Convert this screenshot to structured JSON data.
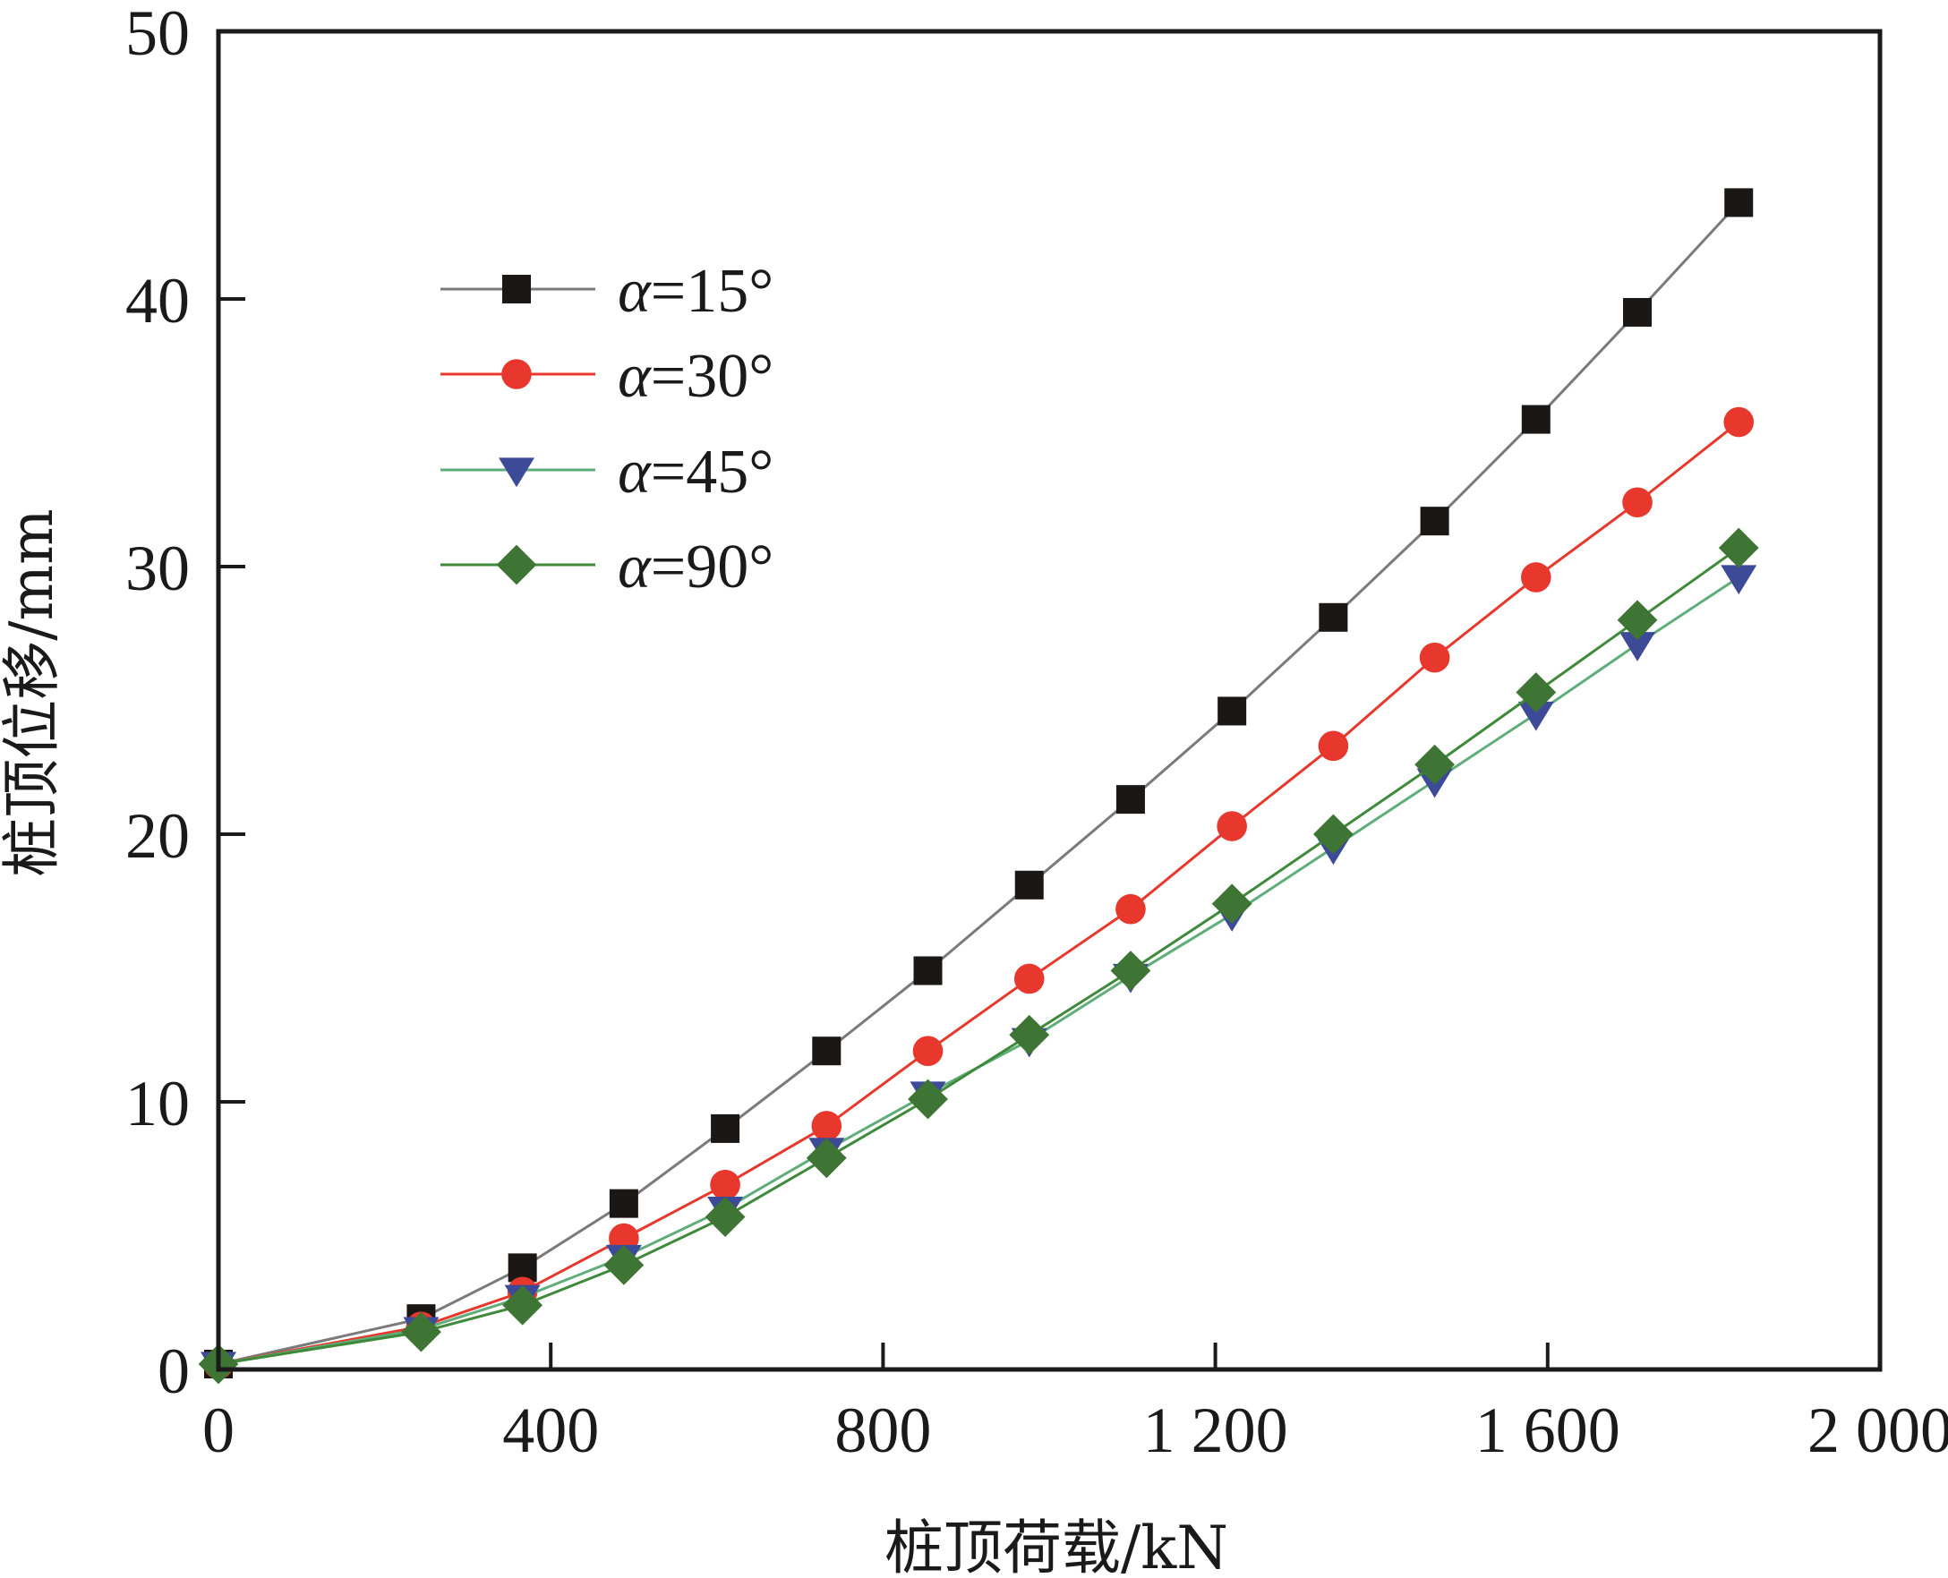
{
  "chart_data": {
    "type": "line",
    "title": "",
    "xlabel": "桩顶荷载/kN",
    "ylabel": "桩顶位移/mm",
    "xlim": [
      0,
      2000
    ],
    "ylim": [
      0,
      50
    ],
    "xticks": [
      0,
      400,
      800,
      1200,
      1600,
      2000
    ],
    "xtick_labels": [
      "0",
      "400",
      "800",
      "1 200",
      "1 600",
      "2 000"
    ],
    "yticks": [
      0,
      10,
      20,
      30,
      40,
      50
    ],
    "ytick_labels": [
      "0",
      "10",
      "20",
      "30",
      "40",
      "50"
    ],
    "grid": false,
    "legend_position": "upper-left (inside)",
    "x": [
      0,
      244,
      366,
      488,
      610,
      732,
      854,
      976,
      1098,
      1220,
      1342,
      1464,
      1586,
      1708,
      1830
    ],
    "series": [
      {
        "name": "α=15°",
        "label_symbol": "α",
        "label_rest": "=15°",
        "marker": "square",
        "marker_color": "#1a1714",
        "line_color": "#7a7a7a",
        "values": [
          0.2,
          1.9,
          3.8,
          6.2,
          9.0,
          11.9,
          14.9,
          18.1,
          21.3,
          24.6,
          28.1,
          31.7,
          35.5,
          39.5,
          43.6
        ]
      },
      {
        "name": "α=30°",
        "label_symbol": "α",
        "label_rest": "=30°",
        "marker": "circle",
        "marker_color": "#e8372c",
        "line_color": "#e8372c",
        "values": [
          0.2,
          1.6,
          2.9,
          4.9,
          6.9,
          9.1,
          11.9,
          14.6,
          17.2,
          20.3,
          23.3,
          26.6,
          29.6,
          32.4,
          35.4
        ]
      },
      {
        "name": "α=45°",
        "label_symbol": "α",
        "label_rest": "=45°",
        "marker": "triangle-down",
        "marker_color": "#3c4a98",
        "line_color": "#5fae7a",
        "values": [
          0.2,
          1.5,
          2.7,
          4.2,
          6.0,
          8.2,
          10.3,
          12.3,
          14.7,
          17.0,
          19.5,
          22.0,
          24.5,
          27.1,
          29.6
        ]
      },
      {
        "name": "α=90°",
        "label_symbol": "α",
        "label_rest": "=90°",
        "marker": "diamond",
        "marker_color": "#3e7434",
        "line_color": "#3e8a3a",
        "values": [
          0.2,
          1.4,
          2.4,
          3.9,
          5.7,
          7.9,
          10.1,
          12.5,
          14.9,
          17.4,
          20.0,
          22.6,
          25.3,
          28.0,
          30.7
        ]
      }
    ]
  }
}
